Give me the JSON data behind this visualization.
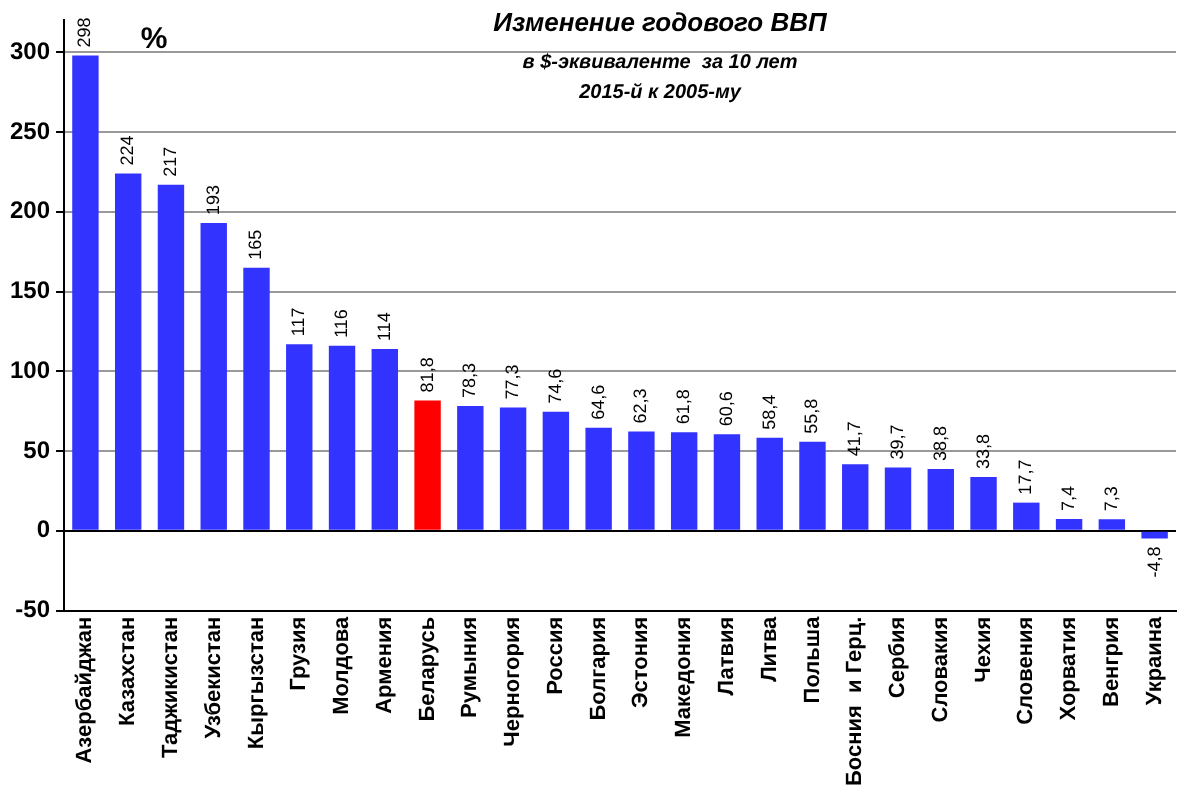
{
  "chart_data": {
    "type": "bar",
    "title": "Изменение годового ВВП",
    "subtitle": "в $-эквиваленте  за 10 лет\n2015-й к 2005-му",
    "ylabel": "%",
    "categories": [
      "Азербайджан",
      "Казахстан",
      "Таджикистан",
      "Узбекистан",
      "Кыргызстан",
      "Грузия",
      "Молдова",
      "Армения",
      "Беларусь",
      "Румыния",
      "Черногория",
      "Россия",
      "Болгария",
      "Эстония",
      "Македония",
      "Латвия",
      "Литва",
      "Польша",
      "Босния  и Герц.",
      "Сербия",
      "Словакия",
      "Чехия",
      "Словения",
      "Хорватия",
      "Венгрия",
      "Украина"
    ],
    "values": [
      298,
      224,
      217,
      193,
      165,
      117,
      116,
      114,
      81.8,
      78.3,
      77.3,
      74.6,
      64.6,
      62.3,
      61.8,
      60.6,
      58.4,
      55.8,
      41.7,
      39.7,
      38.8,
      33.8,
      17.7,
      7.4,
      7.3,
      -4.8
    ],
    "value_labels": [
      "298",
      "224",
      "217",
      "193",
      "165",
      "117",
      "116",
      "114",
      "81,8",
      "78,3",
      "77,3",
      "74,6",
      "64,6",
      "62,3",
      "61,8",
      "60,6",
      "58,4",
      "55,8",
      "41,7",
      "39,7",
      "38,8",
      "33,8",
      "17,7",
      "7,4",
      "7,3",
      "-4,8"
    ],
    "colors": [
      "#3333ff",
      "#3333ff",
      "#3333ff",
      "#3333ff",
      "#3333ff",
      "#3333ff",
      "#3333ff",
      "#3333ff",
      "#ff0000",
      "#3333ff",
      "#3333ff",
      "#3333ff",
      "#3333ff",
      "#3333ff",
      "#3333ff",
      "#3333ff",
      "#3333ff",
      "#3333ff",
      "#3333ff",
      "#3333ff",
      "#3333ff",
      "#3333ff",
      "#3333ff",
      "#3333ff",
      "#3333ff",
      "#3333ff"
    ],
    "ylim": [
      -50,
      320
    ],
    "yticks": [
      -50,
      0,
      50,
      100,
      150,
      200,
      250,
      300
    ],
    "grid": "y",
    "legend": false
  }
}
